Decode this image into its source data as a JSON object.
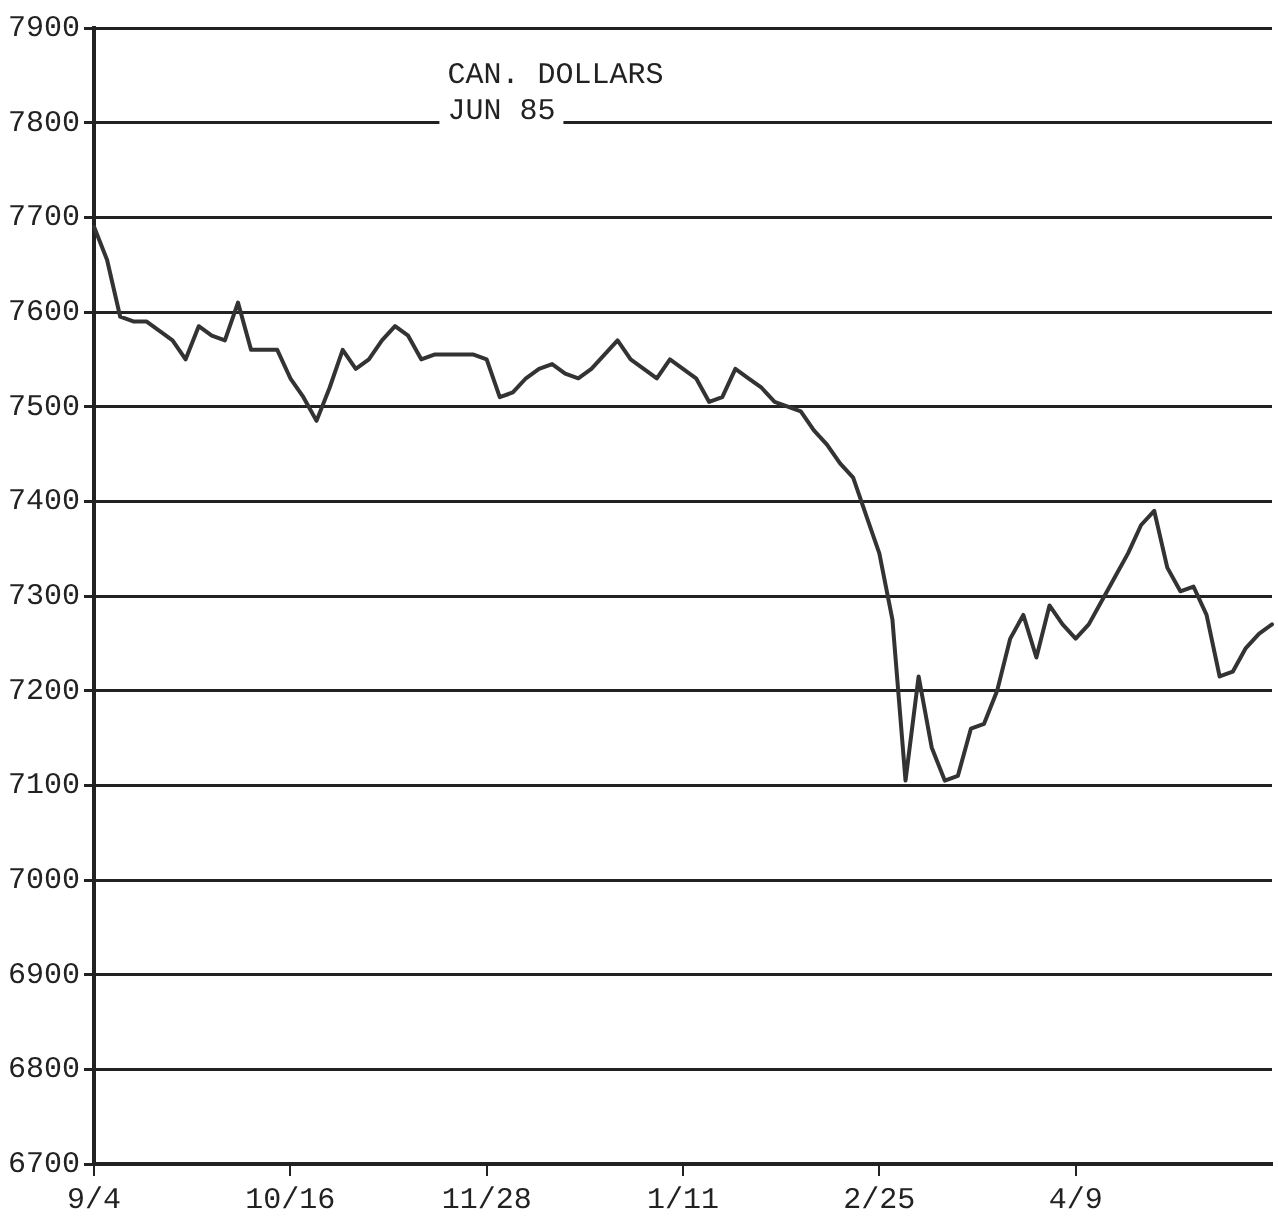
{
  "chart_data": {
    "type": "line",
    "title": "CAN. DOLLARS",
    "subtitle": "JUN 85",
    "categories": [
      "9/4",
      null,
      null,
      null,
      null,
      null,
      null,
      null,
      null,
      null,
      null,
      null,
      null,
      null,
      null,
      "10/16",
      null,
      null,
      null,
      null,
      null,
      null,
      null,
      null,
      null,
      null,
      null,
      null,
      null,
      null,
      "11/28",
      null,
      null,
      null,
      null,
      null,
      null,
      null,
      null,
      null,
      null,
      null,
      null,
      null,
      null,
      "1/11",
      null,
      null,
      null,
      null,
      null,
      null,
      null,
      null,
      null,
      null,
      null,
      null,
      null,
      null,
      "2/25",
      null,
      null,
      null,
      null,
      null,
      null,
      null,
      null,
      null,
      null,
      null,
      null,
      null,
      null,
      "4/9",
      null,
      null,
      null,
      null,
      null,
      null,
      null,
      null,
      null,
      null,
      null,
      null,
      null,
      null,
      null
    ],
    "series": [
      {
        "color": "#333333",
        "values": [
          7690,
          7655,
          7595,
          7590,
          7590,
          7580,
          7570,
          7550,
          7585,
          7575,
          7570,
          7610,
          7560,
          7560,
          7560,
          7530,
          7510,
          7485,
          7520,
          7560,
          7540,
          7550,
          7570,
          7585,
          7575,
          7550,
          7555,
          7555,
          7555,
          7555,
          7550,
          7510,
          7515,
          7530,
          7540,
          7545,
          7535,
          7530,
          7540,
          7555,
          7570,
          7550,
          7540,
          7530,
          7550,
          7540,
          7530,
          7505,
          7510,
          7540,
          7530,
          7520,
          7505,
          7500,
          7495,
          7475,
          7460,
          7440,
          7425,
          7385,
          7345,
          7275,
          7105,
          7215,
          7140,
          7105,
          7110,
          7160,
          7165,
          7200,
          7255,
          7280,
          7235,
          7290,
          7270,
          7255,
          7270,
          7295,
          7320,
          7345,
          7375,
          7390,
          7330,
          7305,
          7310,
          7280,
          7215,
          7220,
          7245,
          7260,
          7270
        ]
      }
    ],
    "ylim": [
      6700,
      7900
    ],
    "yticks": [
      6700,
      6800,
      6900,
      7000,
      7100,
      7200,
      7300,
      7400,
      7500,
      7600,
      7700,
      7800,
      7900
    ],
    "grid": "y",
    "legend": false,
    "marker": "none",
    "line_style": "solid"
  }
}
